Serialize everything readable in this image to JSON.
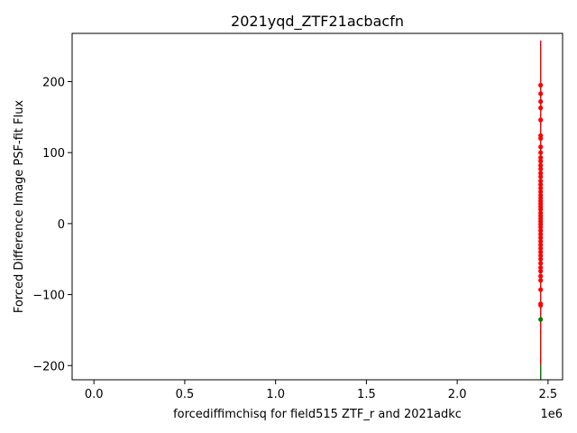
{
  "chart_data": {
    "type": "scatter",
    "title": "2021yqd_ZTF21acbacfn",
    "xlabel": "forcediffimchisq for field515 ZTF_r and 2021adkc",
    "ylabel": "Forced Difference Image PSF-fit Flux",
    "x_offset_label": "1e6",
    "xlim": [
      -120000,
      2580000
    ],
    "ylim": [
      -220,
      268
    ],
    "x_ticks": [
      0.0,
      0.5,
      1.0,
      1.5,
      2.0,
      2.5
    ],
    "x_tick_labels": [
      "0.0",
      "0.5",
      "1.0",
      "1.5",
      "2.0",
      "2.5"
    ],
    "y_ticks": [
      -200,
      -100,
      0,
      100,
      200
    ],
    "y_tick_labels": [
      "−200",
      "−100",
      "0",
      "100",
      "200"
    ],
    "grid": false,
    "series": [
      {
        "color": "#008000",
        "x_value": 2459460,
        "points": [
          {
            "y": -135,
            "err_low": -220,
            "err_high": -110
          }
        ]
      },
      {
        "color": "#ff0000",
        "x_value": 2459465,
        "errorbar": [
          -200,
          258
        ],
        "y": [
          195,
          183,
          172,
          163,
          146,
          124,
          120,
          108,
          100,
          93,
          88,
          82,
          77,
          71,
          66,
          60,
          55,
          50,
          45,
          40,
          36,
          32,
          28,
          24,
          20,
          15,
          11,
          7,
          3,
          -1,
          -5,
          -10,
          -15,
          -20,
          -25,
          -30,
          -35,
          -40,
          -45,
          -50,
          -56,
          -62,
          -67,
          -74,
          -80,
          -93,
          -113,
          -115
        ]
      }
    ]
  }
}
